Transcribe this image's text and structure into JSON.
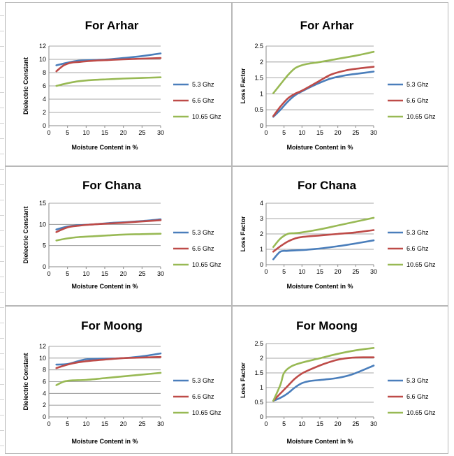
{
  "chart_data": [
    {
      "type": "line",
      "title": "For Arhar",
      "xlabel": "Moisture Content in %",
      "ylabel": "Dielectric Constant",
      "xlim": [
        0,
        30
      ],
      "ylim": [
        0,
        12
      ],
      "xticks": [
        "0",
        "5",
        "10",
        "15",
        "20",
        "25",
        "30"
      ],
      "yticks": [
        "0",
        "2",
        "4",
        "6",
        "8",
        "10",
        "12"
      ],
      "grid": true,
      "legend": "right",
      "series": [
        {
          "name": "5.3 Ghz",
          "color": "#4a7ebb",
          "x": [
            2,
            5,
            8,
            12,
            16,
            20,
            25,
            30
          ],
          "y": [
            9.1,
            9.5,
            9.8,
            9.9,
            10.0,
            10.2,
            10.5,
            10.9
          ]
        },
        {
          "name": "6.6 Ghz",
          "color": "#be4b48",
          "x": [
            2,
            4,
            6,
            8,
            12,
            16,
            20,
            25,
            30
          ],
          "y": [
            8.2,
            9.1,
            9.5,
            9.6,
            9.8,
            9.9,
            10.0,
            10.1,
            10.2
          ]
        },
        {
          "name": "10.65 Ghz",
          "color": "#98b954",
          "x": [
            2,
            5,
            8,
            12,
            16,
            20,
            25,
            30
          ],
          "y": [
            6.0,
            6.4,
            6.7,
            6.9,
            7.0,
            7.1,
            7.2,
            7.3
          ]
        }
      ]
    },
    {
      "type": "line",
      "title": "For Arhar",
      "xlabel": "Moisture Content in %",
      "ylabel": "Loss Factor",
      "xlim": [
        0,
        30
      ],
      "ylim": [
        0,
        2.5
      ],
      "xticks": [
        "0",
        "5",
        "10",
        "15",
        "20",
        "25",
        "30"
      ],
      "yticks": [
        "0",
        "0.5",
        "1",
        "1.5",
        "2",
        "2.5"
      ],
      "grid": true,
      "legend": "right",
      "series": [
        {
          "name": "5.3 Ghz",
          "color": "#4a7ebb",
          "x": [
            2,
            4,
            6,
            8,
            10,
            14,
            18,
            22,
            26,
            30
          ],
          "y": [
            0.28,
            0.5,
            0.75,
            0.95,
            1.08,
            1.3,
            1.48,
            1.58,
            1.64,
            1.7
          ]
        },
        {
          "name": "6.6 Ghz",
          "color": "#be4b48",
          "x": [
            2,
            4,
            6,
            8,
            10,
            14,
            18,
            22,
            26,
            30
          ],
          "y": [
            0.3,
            0.6,
            0.85,
            1.0,
            1.1,
            1.35,
            1.6,
            1.73,
            1.8,
            1.85
          ]
        },
        {
          "name": "10.65 Ghz",
          "color": "#98b954",
          "x": [
            2,
            4,
            6,
            8,
            10,
            12,
            15,
            20,
            25,
            30
          ],
          "y": [
            1.02,
            1.3,
            1.58,
            1.8,
            1.9,
            1.95,
            2.0,
            2.1,
            2.2,
            2.32
          ]
        }
      ]
    },
    {
      "type": "line",
      "title": "For Chana",
      "xlabel": "Moisture Content in %",
      "ylabel": "Dielectric Constant",
      "xlim": [
        0,
        30
      ],
      "ylim": [
        0,
        15
      ],
      "xticks": [
        "0",
        "5",
        "10",
        "15",
        "20",
        "25",
        "30"
      ],
      "yticks": [
        "0",
        "5",
        "10",
        "15"
      ],
      "grid": true,
      "legend": "right",
      "series": [
        {
          "name": "5.3 Ghz",
          "color": "#4a7ebb",
          "x": [
            2,
            5,
            8,
            12,
            16,
            20,
            25,
            30
          ],
          "y": [
            8.8,
            9.5,
            9.8,
            10.0,
            10.3,
            10.5,
            10.8,
            11.2
          ]
        },
        {
          "name": "6.6 Ghz",
          "color": "#be4b48",
          "x": [
            2,
            5,
            8,
            12,
            16,
            20,
            25,
            30
          ],
          "y": [
            8.2,
            9.3,
            9.7,
            10.0,
            10.2,
            10.4,
            10.7,
            11.0
          ]
        },
        {
          "name": "10.65 Ghz",
          "color": "#98b954",
          "x": [
            2,
            5,
            8,
            12,
            16,
            20,
            25,
            30
          ],
          "y": [
            6.2,
            6.7,
            7.0,
            7.2,
            7.4,
            7.6,
            7.7,
            7.8
          ]
        }
      ]
    },
    {
      "type": "line",
      "title": "For Chana",
      "xlabel": "Moisture Content in %",
      "ylabel": "Loss Factor",
      "xlim": [
        0,
        30
      ],
      "ylim": [
        0,
        4
      ],
      "xticks": [
        "0",
        "5",
        "10",
        "15",
        "20",
        "25",
        "30"
      ],
      "yticks": [
        "0",
        "1",
        "2",
        "3",
        "4"
      ],
      "grid": true,
      "legend": "right",
      "series": [
        {
          "name": "5.3 Ghz",
          "color": "#4a7ebb",
          "x": [
            2,
            4,
            6,
            10,
            15,
            20,
            25,
            30
          ],
          "y": [
            0.35,
            0.85,
            0.9,
            0.95,
            1.05,
            1.2,
            1.38,
            1.58
          ]
        },
        {
          "name": "6.6 Ghz",
          "color": "#be4b48",
          "x": [
            2,
            4,
            6,
            8,
            10,
            15,
            20,
            25,
            30
          ],
          "y": [
            0.85,
            1.2,
            1.5,
            1.7,
            1.8,
            1.9,
            2.0,
            2.1,
            2.25
          ]
        },
        {
          "name": "10.65 Ghz",
          "color": "#98b954",
          "x": [
            2,
            4,
            6,
            8,
            10,
            15,
            20,
            25,
            30
          ],
          "y": [
            1.15,
            1.7,
            2.0,
            2.05,
            2.1,
            2.3,
            2.55,
            2.8,
            3.05
          ]
        }
      ]
    },
    {
      "type": "line",
      "title": "For Moong",
      "xlabel": "Moisture Content in %",
      "ylabel": "Dielectric Constant",
      "xlim": [
        0,
        30
      ],
      "ylim": [
        0,
        12
      ],
      "xticks": [
        "0",
        "5",
        "10",
        "15",
        "20",
        "25",
        "30"
      ],
      "yticks": [
        "0",
        "2",
        "4",
        "6",
        "8",
        "10",
        "12"
      ],
      "grid": true,
      "legend": "right",
      "series": [
        {
          "name": "5.3 Ghz",
          "color": "#4a7ebb",
          "x": [
            2,
            5,
            8,
            10,
            14,
            18,
            22,
            26,
            30
          ],
          "y": [
            8.9,
            9.0,
            9.5,
            9.8,
            9.9,
            9.95,
            10.1,
            10.4,
            10.8
          ]
        },
        {
          "name": "6.6 Ghz",
          "color": "#be4b48",
          "x": [
            2,
            5,
            8,
            12,
            16,
            20,
            25,
            30
          ],
          "y": [
            8.3,
            8.9,
            9.3,
            9.6,
            9.8,
            10.0,
            10.1,
            10.2
          ]
        },
        {
          "name": "10.65 Ghz",
          "color": "#98b954",
          "x": [
            2,
            4,
            6,
            10,
            15,
            20,
            25,
            30
          ],
          "y": [
            5.4,
            6.0,
            6.2,
            6.3,
            6.6,
            6.9,
            7.2,
            7.5
          ]
        }
      ]
    },
    {
      "type": "line",
      "title": "For Moong",
      "xlabel": "Moisture Content in %",
      "ylabel": "Loss Factor",
      "xlim": [
        0,
        30
      ],
      "ylim": [
        0,
        2.5
      ],
      "xticks": [
        "0",
        "5",
        "10",
        "15",
        "20",
        "25",
        "30"
      ],
      "yticks": [
        "0",
        "0.5",
        "1",
        "1.5",
        "2",
        "2.5"
      ],
      "grid": true,
      "legend": "right",
      "series": [
        {
          "name": "5.3 Ghz",
          "color": "#4a7ebb",
          "x": [
            2,
            4,
            6,
            8,
            10,
            12,
            16,
            20,
            24,
            30
          ],
          "y": [
            0.55,
            0.65,
            0.8,
            1.0,
            1.15,
            1.22,
            1.27,
            1.33,
            1.45,
            1.75
          ]
        },
        {
          "name": "6.6 Ghz",
          "color": "#be4b48",
          "x": [
            2,
            4,
            6,
            8,
            10,
            12,
            16,
            20,
            24,
            28,
            30
          ],
          "y": [
            0.55,
            0.8,
            1.05,
            1.3,
            1.48,
            1.6,
            1.8,
            1.95,
            2.02,
            2.03,
            2.03
          ]
        },
        {
          "name": "10.65 Ghz",
          "color": "#98b954",
          "x": [
            2,
            4,
            5,
            7,
            10,
            15,
            20,
            25,
            30
          ],
          "y": [
            0.55,
            1.1,
            1.5,
            1.72,
            1.85,
            2.0,
            2.15,
            2.27,
            2.35
          ]
        }
      ]
    }
  ]
}
